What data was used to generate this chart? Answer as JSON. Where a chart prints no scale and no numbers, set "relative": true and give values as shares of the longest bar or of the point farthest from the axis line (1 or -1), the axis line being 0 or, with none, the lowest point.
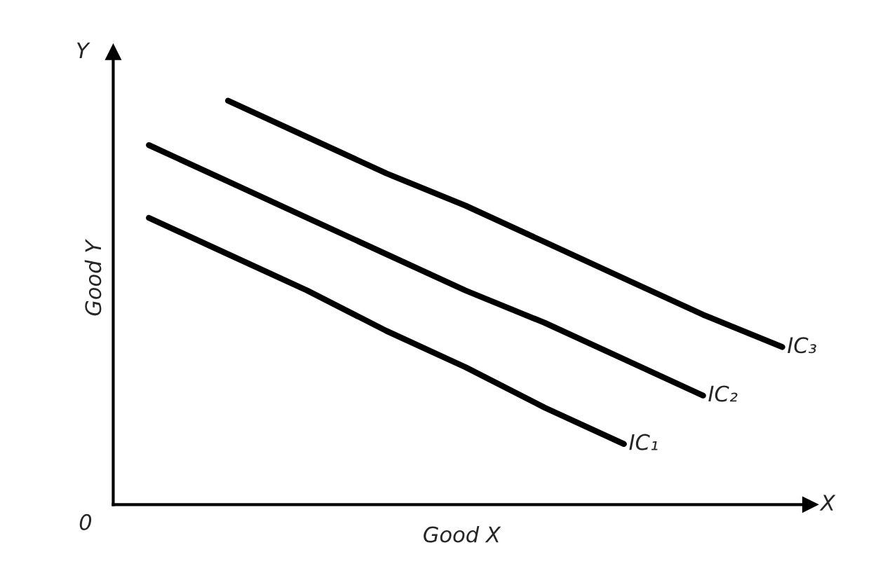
{
  "chart_data": {
    "type": "line",
    "relative": true,
    "xlabel": "Good X",
    "ylabel": "Good Y",
    "annotations": [
      "Y",
      "X",
      "0"
    ],
    "categories": [
      null,
      null,
      null,
      null,
      null,
      null,
      null,
      null,
      null
    ],
    "series": [
      {
        "name": "IC₁",
        "color": "#000000",
        "values": [
          0.71,
          0.62,
          0.53,
          0.43,
          0.34,
          0.24,
          0.15,
          null,
          null
        ]
      },
      {
        "name": "IC₂",
        "color": "#000000",
        "values": [
          0.89,
          0.8,
          0.71,
          0.62,
          0.53,
          0.45,
          0.36,
          0.27,
          null
        ]
      },
      {
        "name": "IC₃",
        "color": "#000000",
        "values": [
          null,
          1.0,
          0.91,
          0.82,
          0.74,
          0.65,
          0.56,
          0.47,
          0.39
        ]
      }
    ],
    "legend": false,
    "marker": "none",
    "line_style": "solid"
  }
}
